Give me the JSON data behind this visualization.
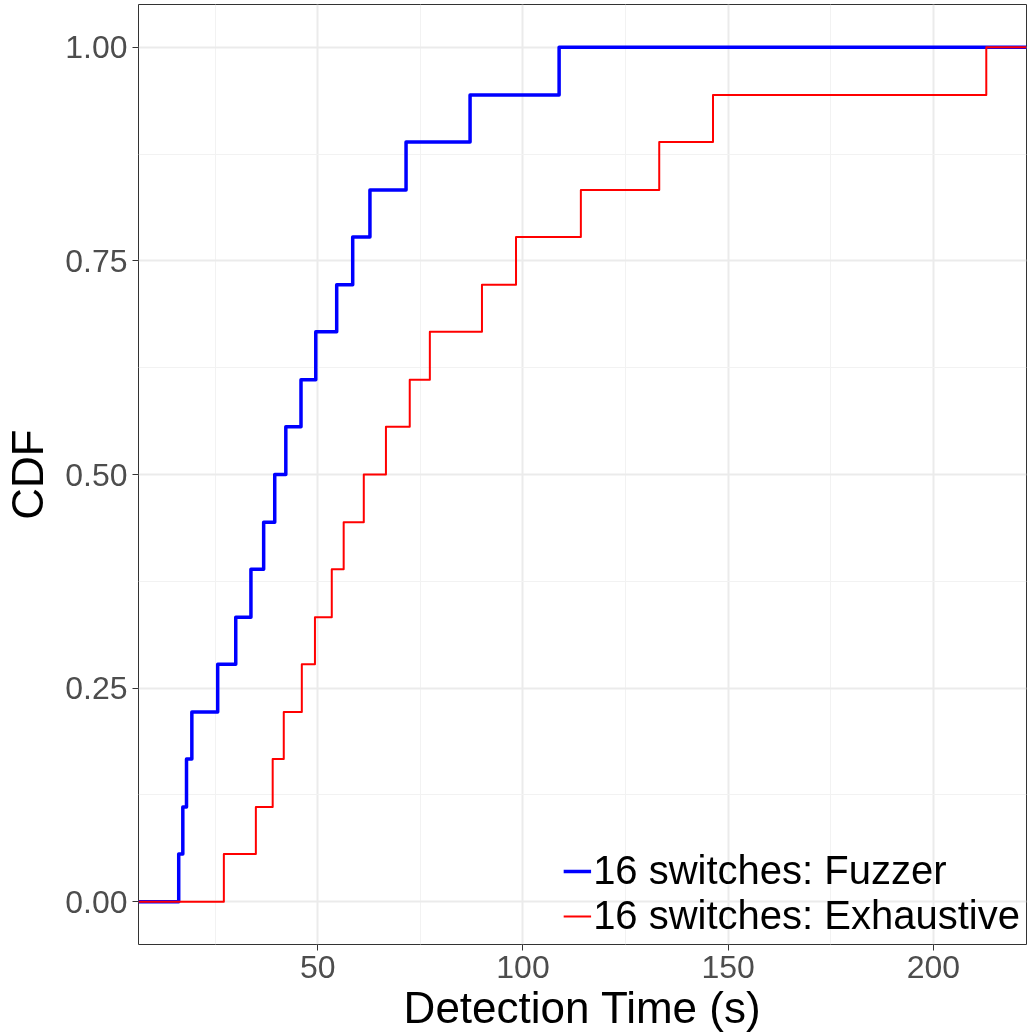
{
  "chart_data": {
    "type": "step",
    "xlabel": "Detection Time (s)",
    "ylabel": "CDF",
    "series": [
      {
        "name": "16 switches: Fuzzer",
        "color": "#0000ff",
        "x": [
          6.3,
          16.1,
          17.1,
          18.0,
          19.3,
          25.6,
          30.0,
          33.7,
          36.8,
          39.5,
          42.2,
          45.9,
          49.5,
          54.6,
          58.5,
          62.7,
          71.5,
          87.1,
          108.8,
          222.7
        ],
        "values": [
          0,
          0.056,
          0.111,
          0.167,
          0.222,
          0.278,
          0.333,
          0.389,
          0.444,
          0.5,
          0.556,
          0.611,
          0.667,
          0.722,
          0.778,
          0.833,
          0.889,
          0.944,
          1,
          1
        ]
      },
      {
        "name": "16 switches: Exhaustive",
        "color": "#ff0000",
        "x": [
          6.3,
          27.1,
          34.9,
          39.0,
          41.7,
          46.1,
          49.3,
          53.4,
          56.3,
          61.2,
          66.6,
          72.4,
          77.3,
          90.0,
          98.3,
          114.1,
          133.2,
          146.3,
          212.9,
          222.7
        ],
        "values": [
          0,
          0.056,
          0.111,
          0.167,
          0.222,
          0.278,
          0.333,
          0.389,
          0.444,
          0.5,
          0.556,
          0.611,
          0.667,
          0.722,
          0.778,
          0.833,
          0.889,
          0.944,
          1,
          1
        ]
      }
    ],
    "xlim": [
      6.3,
      222.7
    ],
    "xticks": [
      50,
      100,
      150,
      200
    ],
    "ylim": [
      -0.05,
      1.05
    ],
    "yticks": [
      {
        "value": 0,
        "label": "0.00"
      },
      {
        "value": 0.25,
        "label": "0.25"
      },
      {
        "value": 0.5,
        "label": "0.50"
      },
      {
        "value": 0.75,
        "label": "0.75"
      },
      {
        "value": 1,
        "label": "1.00"
      }
    ],
    "grid": true,
    "legend": "bottom right",
    "line_style": "solid"
  }
}
